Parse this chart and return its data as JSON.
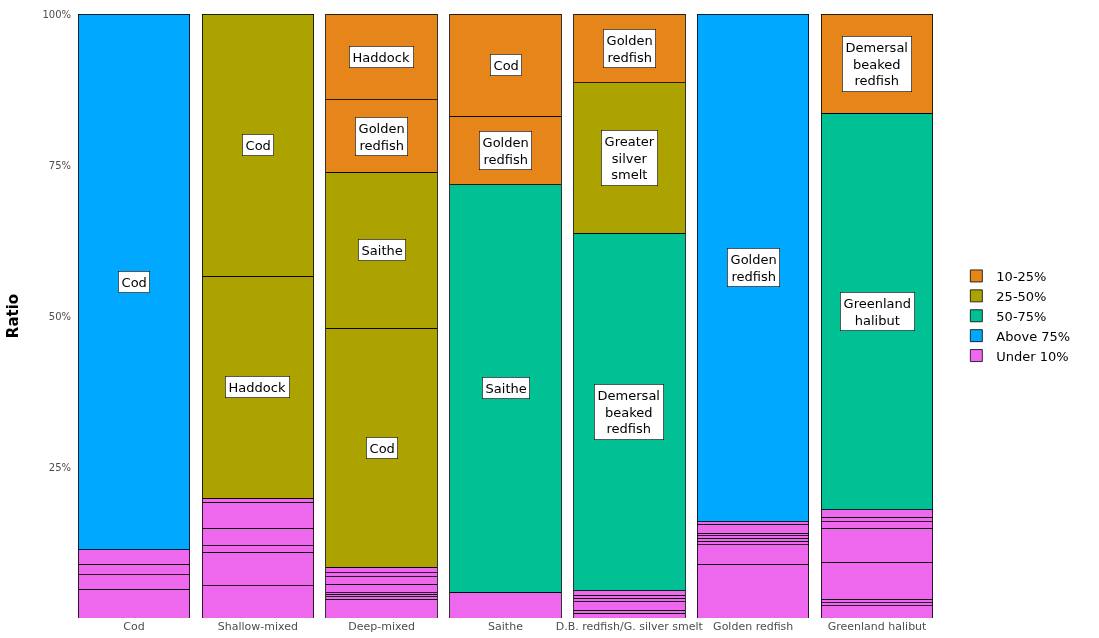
{
  "chart_data": {
    "type": "bar",
    "stacked": true,
    "ylabel": "Ratio",
    "categories": [
      "Cod",
      "Shallow-mixed",
      "Deep-mixed",
      "Saithe",
      "D.B. redfish/G. silver smelt",
      "Golden redfish",
      "Greenland halibut"
    ],
    "ylim": [
      0,
      100
    ],
    "yticks": [
      {
        "value": 25,
        "label": "25%"
      },
      {
        "value": 50,
        "label": "50%"
      },
      {
        "value": 75,
        "label": "75%"
      },
      {
        "value": 100,
        "label": "100%"
      }
    ],
    "grid": false,
    "legend": "right",
    "series": [
      {
        "name": "Under 10%",
        "color": "#ed68ed",
        "values": [
          4.8,
          5.3,
          3.1,
          4.3,
          0.8,
          8.9,
          2.0
        ]
      },
      {
        "color": "#ed68ed",
        "values": [
          2.4,
          5.6,
          0.4,
          null,
          0.5,
          3.2,
          0.5
        ]
      },
      {
        "color": "#ed68ed",
        "values": [
          1.7,
          1.1,
          0.4,
          null,
          1.4,
          0.6,
          0.6
        ]
      },
      {
        "color": "#ed68ed",
        "values": [
          2.4,
          2.9,
          0.3,
          null,
          0.6,
          0.5,
          6.1
        ]
      },
      {
        "color": "#ed68ed",
        "values": [
          null,
          4.3,
          1.4,
          null,
          0.5,
          0.4,
          5.7
        ]
      },
      {
        "color": "#ed68ed",
        "values": [
          null,
          0.6,
          1.2,
          null,
          0.7,
          0.4,
          1.0
        ]
      },
      {
        "color": "#ed68ed",
        "values": [
          null,
          null,
          0.7,
          null,
          null,
          1.5,
          0.8
        ]
      },
      {
        "color": "#ed68ed",
        "values": [
          null,
          null,
          0.9,
          null,
          null,
          0.4,
          1.2
        ]
      },
      {
        "name": "Above 75%",
        "color": "#00a9ff",
        "values": [
          88.7,
          null,
          null,
          null,
          null,
          84.1,
          null
        ],
        "value_labels": [
          "Cod",
          null,
          null,
          null,
          null,
          "Golden\nredfish",
          null
        ]
      },
      {
        "name": "50-75%",
        "color": "#00c094",
        "values": [
          null,
          null,
          null,
          67.4,
          59.2,
          null,
          65.7
        ],
        "value_labels": [
          null,
          null,
          null,
          "Saithe",
          "Demersal\nbeaked\nredfish",
          null,
          "Greenland\nhalibut"
        ]
      },
      {
        "name": "25-50%",
        "color": "#aca300",
        "values": [
          null,
          36.8,
          39.6,
          null,
          24.9,
          null,
          null
        ],
        "value_labels": [
          null,
          "Haddock",
          "Cod",
          null,
          "Greater\nsilver\nsmelt",
          null,
          null
        ]
      },
      {
        "color": "#aca300",
        "values": [
          null,
          43.4,
          25.8,
          null,
          null,
          null,
          null
        ],
        "value_labels": [
          null,
          "Cod",
          "Saithe",
          null,
          null,
          null,
          null
        ]
      },
      {
        "name": "10-25%",
        "color": "#e6861a",
        "values": [
          null,
          null,
          12.0,
          11.4,
          11.4,
          null,
          16.4
        ],
        "value_labels": [
          null,
          null,
          "Golden\nredfish",
          "Golden\nredfish",
          "Golden\nredfish",
          null,
          "Demersal\nbeaked\nredfish"
        ]
      },
      {
        "color": "#e6861a",
        "values": [
          null,
          null,
          14.2,
          16.9,
          null,
          null,
          null
        ],
        "value_labels": [
          null,
          null,
          "Haddock",
          "Cod",
          null,
          null,
          null
        ]
      }
    ]
  }
}
